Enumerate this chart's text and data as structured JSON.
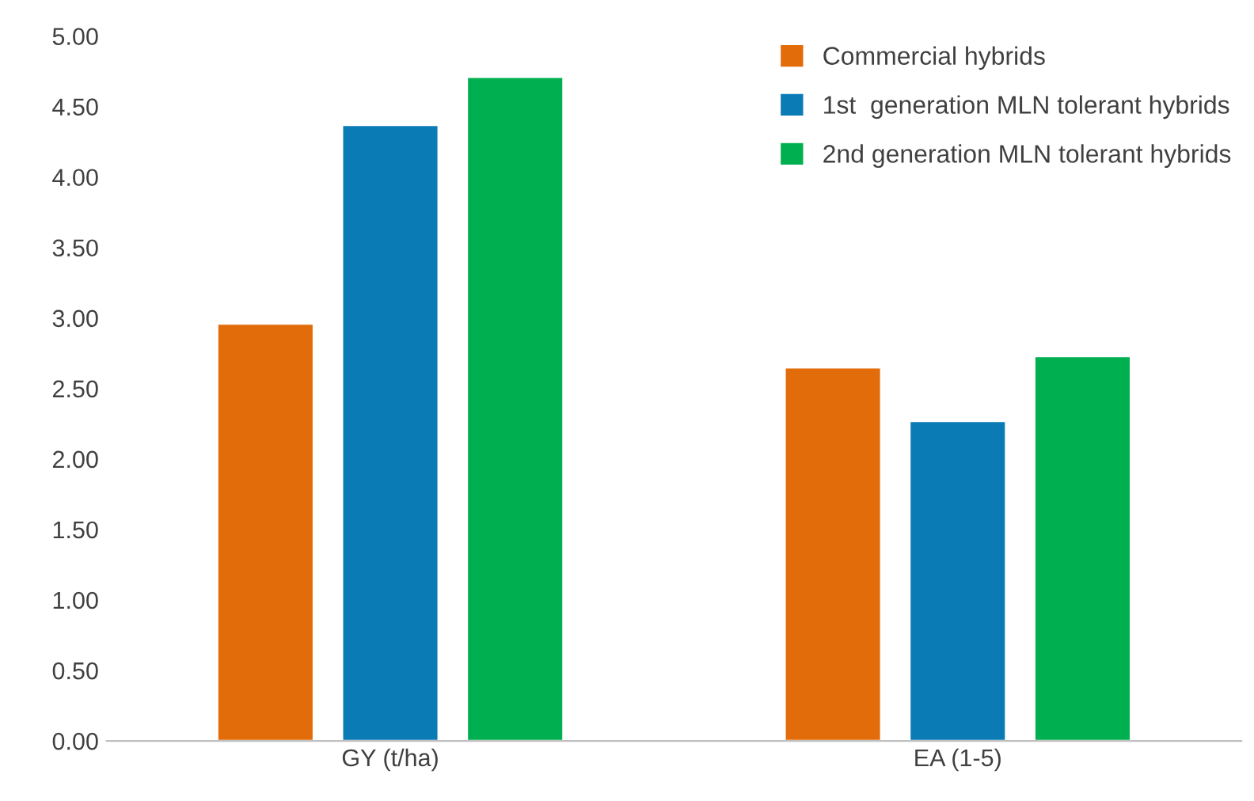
{
  "chart_data": {
    "type": "bar",
    "categories": [
      "GY (t/ha)",
      "EA (1-5)"
    ],
    "series": [
      {
        "name": "Commercial hybrids",
        "color": "#e36c0a",
        "values": [
          2.96,
          2.65
        ]
      },
      {
        "name": "1st  generation MLN tolerant hybrids",
        "color": "#0b7bb6",
        "values": [
          4.37,
          2.27
        ]
      },
      {
        "name": "2nd generation MLN tolerant hybrids",
        "color": "#00b050",
        "values": [
          4.71,
          2.73
        ]
      }
    ],
    "ylim": [
      0,
      5
    ],
    "yticks": [
      {
        "value": 0,
        "label": "0.00"
      },
      {
        "value": 0.5,
        "label": "0.50"
      },
      {
        "value": 1,
        "label": "1.00"
      },
      {
        "value": 1.5,
        "label": "1.50"
      },
      {
        "value": 2,
        "label": "2.00"
      },
      {
        "value": 2.5,
        "label": "2.50"
      },
      {
        "value": 3,
        "label": "3.00"
      },
      {
        "value": 3.5,
        "label": "3.50"
      },
      {
        "value": 4,
        "label": "4.00"
      },
      {
        "value": 4.5,
        "label": "4.50"
      },
      {
        "value": 5,
        "label": "5.00"
      }
    ],
    "grid": false,
    "legend": "top right"
  }
}
